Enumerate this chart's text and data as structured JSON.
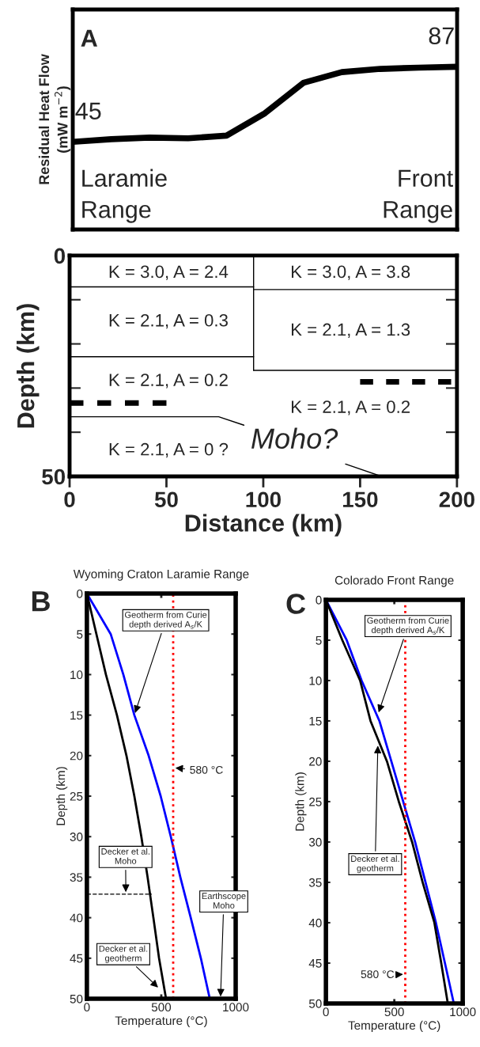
{
  "chart_data": [
    {
      "type": "line",
      "ylabel": "Residual Heat Flow\n(mW m$^{−2}$)",
      "annotations": [
        "A",
        "Laramie\nRange",
        "Front\nRange"
      ],
      "categories": [
        null,
        null,
        null,
        null,
        null,
        null,
        null,
        null,
        null,
        null,
        null
      ],
      "series": [
        {
          "color": "#000000",
          "values": [
            45,
            46.5,
            47.4,
            47,
            48.5,
            61,
            78,
            84,
            85.8,
            86.5,
            87
          ],
          "value_labels": [
            "45",
            null,
            null,
            null,
            null,
            null,
            null,
            null,
            null,
            null,
            "87"
          ]
        }
      ],
      "ylim": [
        -4,
        119
      ]
    },
    {
      "type": "line",
      "xlabel": "Distance (km)",
      "ylabel": "Depth (km)",
      "annotations": [
        "K = 3.0, A = 2.4",
        "K = 3.0, A = 3.8",
        "K = 2.1, A = 0.3",
        "K = 2.1, A = 1.3",
        "K = 2.1, A = 0.2",
        "K = 2.1, A = 0.2",
        "K = 2.1, A = 0 ?",
        "Moho?"
      ],
      "series": [
        {
          "color": "#000000",
          "x": [
            0,
            95
          ],
          "values": [
            7.1,
            7.1
          ]
        },
        {
          "color": "#000000",
          "x": [
            95,
            199
          ],
          "values": [
            7.7,
            7.7
          ]
        },
        {
          "color": "#000000",
          "x": [
            95,
            95
          ],
          "values": [
            0,
            26
          ]
        },
        {
          "color": "#000000",
          "x": [
            0,
            95
          ],
          "values": [
            22.9,
            22.9
          ]
        },
        {
          "color": "#000000",
          "x": [
            95,
            199
          ],
          "values": [
            26,
            26
          ]
        },
        {
          "color": "#000000",
          "x": [
            0,
            50
          ],
          "values": [
            33.4,
            33.4
          ],
          "line_style": "dashed"
        },
        {
          "color": "#000000",
          "x": [
            150,
            197
          ],
          "values": [
            28.6,
            28.6
          ],
          "line_style": "dashed"
        },
        {
          "color": "#000000",
          "x": [
            1,
            77,
            90
          ],
          "values": [
            36.5,
            36.5,
            38.4
          ]
        },
        {
          "color": "#000000",
          "x": [
            142.5,
            161
          ],
          "values": [
            47.2,
            50
          ]
        }
      ],
      "xlim": [
        0,
        200
      ],
      "ylim": [
        50,
        0
      ],
      "xticks": [
        0,
        50,
        100,
        150,
        200
      ],
      "yticks": [
        0,
        {
          "value": 10,
          "label": null
        },
        {
          "value": 20,
          "label": null
        },
        {
          "value": 30,
          "label": null
        },
        {
          "value": 40,
          "label": null
        },
        50
      ]
    },
    {
      "type": "line",
      "title": "Wyoming Craton Laramie Range",
      "xlabel": "Temperature (°C)",
      "ylabel": "Depth (km)",
      "annotations": [
        "B",
        {
          "text": "Geotherm from Curie\ndepth derived A$_{s}$/K",
          "x": 319,
          "y": 15
        },
        {
          "text": "580 °C",
          "x": 580,
          "y": 21.5
        },
        {
          "text": "Decker et al.\nMoho",
          "x": 262,
          "y": 37.1
        },
        "Earthscope\nMoho",
        {
          "text": "Decker et al.\ngeotherm",
          "x": 489,
          "y": 48.8
        }
      ],
      "series": [
        {
          "color": "#0000ff",
          "x": [
            0,
            160,
            245,
            319,
            415,
            496,
            564,
            628,
            698,
            766,
            826
          ],
          "values": [
            0,
            5,
            10,
            15,
            20,
            25,
            30,
            35,
            40,
            45,
            50
          ]
        },
        {
          "color": "#000000",
          "x": [
            0,
            64,
            128,
            202,
            266,
            319,
            366,
            408,
            447,
            485,
            532
          ],
          "values": [
            0,
            5,
            10,
            15,
            20,
            25,
            30,
            35,
            40,
            45,
            50
          ]
        },
        {
          "color": "#000000",
          "x": [
            0,
            436
          ],
          "values": [
            37.1,
            37.1
          ],
          "line_style": "dashed"
        }
      ],
      "ref_lines": [
        {
          "axis": "x",
          "value": 580,
          "color": "#ff0000",
          "line_style": "dotted"
        }
      ],
      "xlim": [
        0,
        1000
      ],
      "ylim": [
        50,
        0
      ],
      "xticks": [
        0,
        500,
        1000
      ],
      "yticks": [
        0,
        5,
        10,
        15,
        20,
        25,
        30,
        35,
        40,
        45,
        50
      ]
    },
    {
      "type": "line",
      "title": "Colorado Front Range",
      "xlabel": "Temperature (°C)",
      "ylabel": "Depth (km)",
      "annotations": [
        "C",
        {
          "text": "Geotherm from Curie\ndepth derived A$_{s}$/K",
          "x": 380,
          "y": 14.2
        },
        {
          "text": "Decker et al.\ngeotherm",
          "x": 380,
          "y": 17.8
        },
        {
          "text": "580 °C",
          "x": 580,
          "y": 46.4
        }
      ],
      "series": [
        {
          "color": "#0000ff",
          "x": [
            0,
            152,
            261,
            391,
            478,
            565,
            652,
            728,
            804,
            870,
            935
          ],
          "values": [
            0,
            5,
            10,
            15,
            20,
            25,
            30,
            35,
            40,
            45,
            50
          ]
        },
        {
          "color": "#000000",
          "x": [
            0,
            120,
            250,
            326,
            446,
            533,
            630,
            707,
            793,
            843,
            891
          ],
          "values": [
            0,
            5,
            10,
            15,
            20,
            25,
            30,
            35,
            40,
            45,
            50
          ]
        }
      ],
      "ref_lines": [
        {
          "axis": "x",
          "value": 580,
          "color": "#ff0000",
          "line_style": "dotted"
        }
      ],
      "xlim": [
        0,
        1000
      ],
      "ylim": [
        50,
        0
      ],
      "xticks": [
        0,
        500,
        1000
      ],
      "yticks": [
        0,
        5,
        10,
        15,
        20,
        25,
        30,
        35,
        40,
        45,
        50
      ]
    }
  ]
}
